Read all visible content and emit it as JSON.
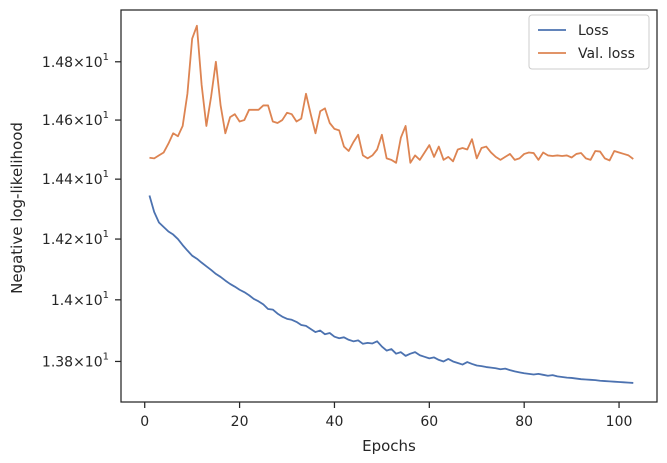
{
  "chart_data": {
    "type": "line",
    "xlabel": "Epochs",
    "ylabel": "Negative log-likelihood",
    "yscale": "log",
    "xlim": [
      -5,
      108
    ],
    "ylim": [
      13.67,
      14.98
    ],
    "grid": false,
    "legend_position": "top-right",
    "x_ticks": [
      {
        "value": 0,
        "label": "0"
      },
      {
        "value": 20,
        "label": "20"
      },
      {
        "value": 40,
        "label": "40"
      },
      {
        "value": 60,
        "label": "60"
      },
      {
        "value": 80,
        "label": "80"
      },
      {
        "value": 100,
        "label": "100"
      }
    ],
    "y_ticks": [
      {
        "value": 13.8,
        "base": "1.38",
        "exp": "1"
      },
      {
        "value": 14.0,
        "base": "1.4",
        "exp": "1"
      },
      {
        "value": 14.2,
        "base": "1.42",
        "exp": "1"
      },
      {
        "value": 14.4,
        "base": "1.44",
        "exp": "1"
      },
      {
        "value": 14.6,
        "base": "1.46",
        "exp": "1"
      },
      {
        "value": 14.8,
        "base": "1.48",
        "exp": "1"
      }
    ],
    "tick_times": "×",
    "tick_ten": "10",
    "x": [
      1,
      2,
      3,
      4,
      5,
      6,
      7,
      8,
      9,
      10,
      11,
      12,
      13,
      14,
      15,
      16,
      17,
      18,
      19,
      20,
      21,
      22,
      23,
      24,
      25,
      26,
      27,
      28,
      29,
      30,
      31,
      32,
      33,
      34,
      35,
      36,
      37,
      38,
      39,
      40,
      41,
      42,
      43,
      44,
      45,
      46,
      47,
      48,
      49,
      50,
      51,
      52,
      53,
      54,
      55,
      56,
      57,
      58,
      59,
      60,
      61,
      62,
      63,
      64,
      65,
      66,
      67,
      68,
      69,
      70,
      71,
      72,
      73,
      74,
      75,
      76,
      77,
      78,
      79,
      80,
      81,
      82,
      83,
      84,
      85,
      86,
      87,
      88,
      89,
      90,
      91,
      92,
      93,
      94,
      95,
      96,
      97,
      98,
      99,
      100,
      101,
      102,
      103
    ],
    "series": [
      {
        "name": "Loss",
        "color": "#4c72b0",
        "values": [
          14.345,
          14.29,
          14.255,
          14.24,
          14.225,
          14.215,
          14.2,
          14.18,
          14.162,
          14.145,
          14.135,
          14.122,
          14.11,
          14.098,
          14.085,
          14.075,
          14.063,
          14.052,
          14.043,
          14.033,
          14.025,
          14.015,
          14.003,
          13.995,
          13.985,
          13.97,
          13.968,
          13.955,
          13.945,
          13.938,
          13.935,
          13.928,
          13.918,
          13.915,
          13.905,
          13.895,
          13.9,
          13.888,
          13.892,
          13.88,
          13.875,
          13.878,
          13.87,
          13.865,
          13.868,
          13.857,
          13.86,
          13.858,
          13.865,
          13.848,
          13.835,
          13.84,
          13.825,
          13.83,
          13.818,
          13.825,
          13.83,
          13.82,
          13.815,
          13.81,
          13.813,
          13.805,
          13.8,
          13.808,
          13.8,
          13.795,
          13.79,
          13.798,
          13.792,
          13.787,
          13.785,
          13.782,
          13.78,
          13.778,
          13.775,
          13.777,
          13.772,
          13.768,
          13.765,
          13.762,
          13.76,
          13.758,
          13.76,
          13.757,
          13.754,
          13.756,
          13.752,
          13.75,
          13.748,
          13.747,
          13.745,
          13.743,
          13.742,
          13.741,
          13.74,
          13.738,
          13.737,
          13.736,
          13.735,
          13.734,
          13.733,
          13.732,
          13.731
        ]
      },
      {
        "name": "Val. loss",
        "color": "#dd8452",
        "values": [
          14.472,
          14.47,
          14.48,
          14.49,
          14.52,
          14.555,
          14.545,
          14.58,
          14.69,
          14.88,
          14.925,
          14.72,
          14.58,
          14.68,
          14.8,
          14.65,
          14.555,
          14.61,
          14.62,
          14.595,
          14.6,
          14.635,
          14.635,
          14.635,
          14.65,
          14.65,
          14.595,
          14.59,
          14.6,
          14.625,
          14.62,
          14.595,
          14.605,
          14.69,
          14.62,
          14.555,
          14.63,
          14.64,
          14.59,
          14.57,
          14.565,
          14.51,
          14.495,
          14.525,
          14.55,
          14.48,
          14.47,
          14.48,
          14.5,
          14.55,
          14.47,
          14.465,
          14.455,
          14.54,
          14.58,
          14.455,
          14.48,
          14.465,
          14.49,
          14.515,
          14.475,
          14.51,
          14.465,
          14.475,
          14.46,
          14.5,
          14.505,
          14.5,
          14.535,
          14.47,
          14.505,
          14.51,
          14.49,
          14.475,
          14.465,
          14.475,
          14.485,
          14.465,
          14.47,
          14.485,
          14.49,
          14.488,
          14.465,
          14.49,
          14.48,
          14.478,
          14.48,
          14.478,
          14.48,
          14.473,
          14.485,
          14.488,
          14.47,
          14.465,
          14.495,
          14.493,
          14.47,
          14.463,
          14.495,
          14.49,
          14.485,
          14.48,
          14.468
        ]
      }
    ]
  }
}
